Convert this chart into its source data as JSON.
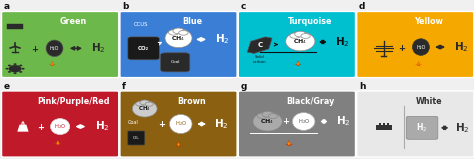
{
  "panels": [
    {
      "label": "a",
      "title": "Green",
      "color": "#6db84a",
      "text_color": "#ffffff",
      "dark_icon": "#2a2a2a",
      "row": 0,
      "col": 0
    },
    {
      "label": "b",
      "title": "Blue",
      "color": "#3a7fd5",
      "text_color": "#ffffff",
      "dark_icon": "#1a1a1a",
      "row": 0,
      "col": 1
    },
    {
      "label": "c",
      "title": "Turquoise",
      "color": "#00c0d0",
      "text_color": "#ffffff",
      "dark_icon": "#1a1a1a",
      "row": 0,
      "col": 2
    },
    {
      "label": "d",
      "title": "Yellow",
      "color": "#f5a800",
      "text_color": "#ffffff",
      "dark_icon": "#2a2a2a",
      "row": 0,
      "col": 3
    },
    {
      "label": "e",
      "title": "Pink/Purple/Red",
      "color": "#c0192a",
      "text_color": "#ffffff",
      "dark_icon": "#1a1a1a",
      "row": 1,
      "col": 0
    },
    {
      "label": "f",
      "title": "Brown",
      "color": "#8b6010",
      "text_color": "#ffffff",
      "dark_icon": "#1a1a1a",
      "row": 1,
      "col": 1
    },
    {
      "label": "g",
      "title": "Black/Gray",
      "color": "#808080",
      "text_color": "#ffffff",
      "dark_icon": "#1a1a1a",
      "row": 1,
      "col": 2
    },
    {
      "label": "h",
      "title": "White",
      "color": "#e8e8e8",
      "text_color": "#333333",
      "dark_icon": "#333333",
      "row": 1,
      "col": 3
    }
  ],
  "bg_color": "#f0f0f0",
  "label_color": "#111111",
  "fig_w": 4.74,
  "fig_h": 1.59,
  "dpi": 100
}
